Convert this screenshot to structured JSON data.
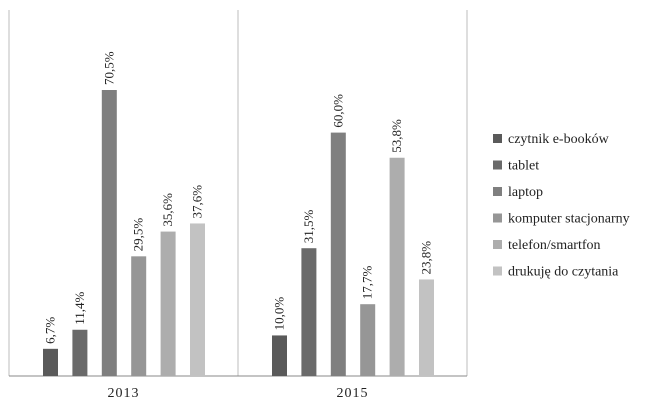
{
  "chart_data": {
    "type": "bar",
    "categories": [
      "2013",
      "2015"
    ],
    "unit_suffix": "%",
    "series": [
      {
        "name": "czytnik e-booków",
        "values": [
          6.7,
          10.0
        ],
        "labels": [
          "6,7%",
          "10,0%"
        ],
        "color": "#5a5a5a"
      },
      {
        "name": "tablet",
        "values": [
          11.4,
          31.5
        ],
        "labels": [
          "11,4%",
          "31,5%"
        ],
        "color": "#6a6a6a"
      },
      {
        "name": "laptop",
        "values": [
          70.5,
          60.0
        ],
        "labels": [
          "70,5%",
          "60,0%"
        ],
        "color": "#7f7f7f"
      },
      {
        "name": "komputer stacjonarny",
        "values": [
          29.5,
          17.7
        ],
        "labels": [
          "29,5%",
          "17,7%"
        ],
        "color": "#969696"
      },
      {
        "name": "telefon/smartfon",
        "values": [
          35.6,
          53.8
        ],
        "labels": [
          "35,6%",
          "53,8%"
        ],
        "color": "#adadad"
      },
      {
        "name": "drukuję do czytania",
        "values": [
          37.6,
          23.8
        ],
        "labels": [
          "37,6%",
          "23,8%"
        ],
        "color": "#c2c2c2"
      }
    ],
    "ylim": [
      0,
      80
    ],
    "grid": false,
    "legend": "right"
  }
}
